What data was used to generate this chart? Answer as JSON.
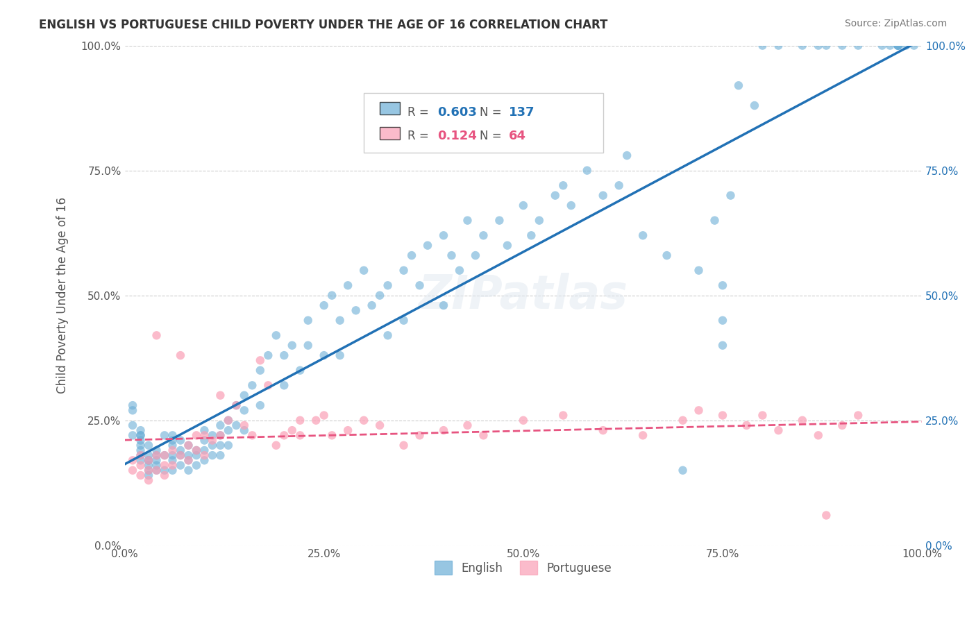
{
  "title": "ENGLISH VS PORTUGUESE CHILD POVERTY UNDER THE AGE OF 16 CORRELATION CHART",
  "source": "Source: ZipAtlas.com",
  "ylabel": "Child Poverty Under the Age of 16",
  "xlabel": "",
  "english_R": 0.603,
  "english_N": 137,
  "portuguese_R": 0.124,
  "portuguese_N": 64,
  "english_color": "#6baed6",
  "portuguese_color": "#fa9fb5",
  "english_line_color": "#2171b5",
  "portuguese_line_color": "#e75480",
  "watermark": "ZIPatlas",
  "xlim": [
    0.0,
    1.0
  ],
  "ylim": [
    0.0,
    1.0
  ],
  "xticks": [
    0.0,
    0.25,
    0.5,
    0.75,
    1.0
  ],
  "yticks": [
    0.0,
    0.25,
    0.5,
    0.75,
    1.0
  ],
  "xticklabels": [
    "0.0%",
    "25.0%",
    "50.0%",
    "75.0%",
    "100.0%"
  ],
  "yticklabels": [
    "0.0%",
    "25.0%",
    "50.0%",
    "75.0%",
    "100.0%"
  ],
  "english_x": [
    0.01,
    0.01,
    0.01,
    0.01,
    0.02,
    0.02,
    0.02,
    0.02,
    0.02,
    0.02,
    0.02,
    0.02,
    0.03,
    0.03,
    0.03,
    0.03,
    0.03,
    0.03,
    0.03,
    0.04,
    0.04,
    0.04,
    0.04,
    0.04,
    0.05,
    0.05,
    0.05,
    0.06,
    0.06,
    0.06,
    0.06,
    0.06,
    0.06,
    0.07,
    0.07,
    0.07,
    0.07,
    0.08,
    0.08,
    0.08,
    0.08,
    0.09,
    0.09,
    0.09,
    0.1,
    0.1,
    0.1,
    0.1,
    0.11,
    0.11,
    0.11,
    0.12,
    0.12,
    0.12,
    0.12,
    0.13,
    0.13,
    0.13,
    0.14,
    0.14,
    0.15,
    0.15,
    0.15,
    0.16,
    0.17,
    0.17,
    0.18,
    0.19,
    0.2,
    0.2,
    0.21,
    0.22,
    0.23,
    0.23,
    0.25,
    0.25,
    0.26,
    0.27,
    0.27,
    0.28,
    0.29,
    0.3,
    0.31,
    0.32,
    0.33,
    0.33,
    0.35,
    0.35,
    0.36,
    0.37,
    0.38,
    0.4,
    0.4,
    0.41,
    0.42,
    0.43,
    0.44,
    0.45,
    0.47,
    0.48,
    0.5,
    0.51,
    0.52,
    0.54,
    0.55,
    0.56,
    0.58,
    0.6,
    0.62,
    0.63,
    0.65,
    0.68,
    0.7,
    0.72,
    0.74,
    0.75,
    0.75,
    0.75,
    0.76,
    0.77,
    0.79,
    0.8,
    0.82,
    0.85,
    0.87,
    0.88,
    0.9,
    0.92,
    0.95,
    0.96,
    0.97,
    0.97,
    0.97,
    0.97,
    0.97,
    0.98,
    0.99
  ],
  "english_y": [
    0.28,
    0.27,
    0.24,
    0.22,
    0.22,
    0.23,
    0.22,
    0.21,
    0.2,
    0.19,
    0.18,
    0.17,
    0.2,
    0.18,
    0.17,
    0.17,
    0.16,
    0.15,
    0.14,
    0.19,
    0.18,
    0.17,
    0.16,
    0.15,
    0.22,
    0.18,
    0.15,
    0.22,
    0.21,
    0.2,
    0.18,
    0.17,
    0.15,
    0.21,
    0.19,
    0.18,
    0.16,
    0.2,
    0.18,
    0.17,
    0.15,
    0.19,
    0.18,
    0.16,
    0.23,
    0.21,
    0.19,
    0.17,
    0.22,
    0.2,
    0.18,
    0.24,
    0.22,
    0.2,
    0.18,
    0.25,
    0.23,
    0.2,
    0.28,
    0.24,
    0.3,
    0.27,
    0.23,
    0.32,
    0.35,
    0.28,
    0.38,
    0.42,
    0.38,
    0.32,
    0.4,
    0.35,
    0.45,
    0.4,
    0.48,
    0.38,
    0.5,
    0.45,
    0.38,
    0.52,
    0.47,
    0.55,
    0.48,
    0.5,
    0.52,
    0.42,
    0.55,
    0.45,
    0.58,
    0.52,
    0.6,
    0.62,
    0.48,
    0.58,
    0.55,
    0.65,
    0.58,
    0.62,
    0.65,
    0.6,
    0.68,
    0.62,
    0.65,
    0.7,
    0.72,
    0.68,
    0.75,
    0.7,
    0.72,
    0.78,
    0.62,
    0.58,
    0.15,
    0.55,
    0.65,
    0.4,
    0.45,
    0.52,
    0.7,
    0.92,
    0.88,
    1.0,
    1.0,
    1.0,
    1.0,
    1.0,
    1.0,
    1.0,
    1.0,
    1.0,
    1.0,
    1.0,
    1.0,
    1.0,
    1.0,
    1.0,
    1.0
  ],
  "portuguese_x": [
    0.01,
    0.01,
    0.02,
    0.02,
    0.02,
    0.03,
    0.03,
    0.03,
    0.04,
    0.04,
    0.04,
    0.05,
    0.05,
    0.05,
    0.06,
    0.06,
    0.07,
    0.07,
    0.08,
    0.08,
    0.09,
    0.09,
    0.1,
    0.1,
    0.11,
    0.12,
    0.12,
    0.13,
    0.14,
    0.15,
    0.16,
    0.17,
    0.18,
    0.19,
    0.2,
    0.21,
    0.22,
    0.22,
    0.24,
    0.25,
    0.26,
    0.28,
    0.3,
    0.32,
    0.35,
    0.37,
    0.4,
    0.43,
    0.45,
    0.5,
    0.55,
    0.6,
    0.65,
    0.7,
    0.72,
    0.75,
    0.78,
    0.8,
    0.82,
    0.85,
    0.87,
    0.88,
    0.9,
    0.92
  ],
  "portuguese_y": [
    0.17,
    0.15,
    0.18,
    0.16,
    0.14,
    0.17,
    0.15,
    0.13,
    0.42,
    0.18,
    0.15,
    0.18,
    0.16,
    0.14,
    0.19,
    0.16,
    0.38,
    0.18,
    0.2,
    0.17,
    0.22,
    0.19,
    0.22,
    0.18,
    0.21,
    0.3,
    0.22,
    0.25,
    0.28,
    0.24,
    0.22,
    0.37,
    0.32,
    0.2,
    0.22,
    0.23,
    0.25,
    0.22,
    0.25,
    0.26,
    0.22,
    0.23,
    0.25,
    0.24,
    0.2,
    0.22,
    0.23,
    0.24,
    0.22,
    0.25,
    0.26,
    0.23,
    0.22,
    0.25,
    0.27,
    0.26,
    0.24,
    0.26,
    0.23,
    0.25,
    0.22,
    0.06,
    0.24,
    0.26
  ]
}
